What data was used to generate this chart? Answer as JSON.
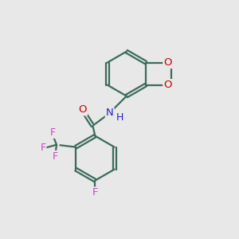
{
  "bg_color": "#e8e8e8",
  "bond_color": "#3a6b5a",
  "bond_width": 1.6,
  "O_color": "#cc0000",
  "N_color": "#2222cc",
  "F_color": "#cc44cc",
  "font_size": 9.5,
  "xlim": [
    0,
    10
  ],
  "ylim": [
    0,
    10
  ]
}
